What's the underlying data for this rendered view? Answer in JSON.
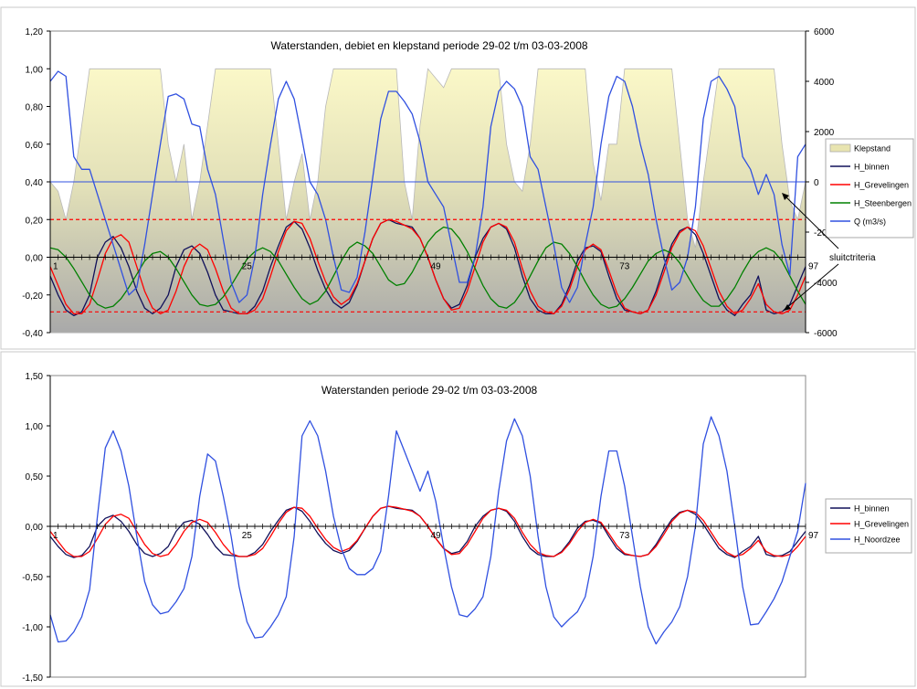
{
  "chart_data": [
    {
      "type": "line",
      "title": "Waterstanden, debiet en klepstand periode 29-02 t/m 03-03-2008",
      "x_range": [
        1,
        97
      ],
      "x_tick_labels": [
        "1",
        "25",
        "49",
        "73",
        "97"
      ],
      "ylim": [
        -0.4,
        1.2
      ],
      "y_tick_labels": [
        "1,20",
        "1,00",
        "0,80",
        "0,60",
        "0,40",
        "0,20",
        "0,00",
        "-0,20",
        "-0,40"
      ],
      "y2lim": [
        -6000,
        6000
      ],
      "y2_tick_labels": [
        "6000",
        "4000",
        "2000",
        "0",
        "-2000",
        "-4000",
        "-6000"
      ],
      "grid": false,
      "legend_position": "right",
      "legend": [
        "Klepstand",
        "H_binnen",
        "H_Grevelingen",
        "H_Steenbergen",
        "Q (m3/s)"
      ],
      "colors": {
        "Klepstand": "#f5f0b0",
        "H_binnen": "#10105a",
        "H_Grevelingen": "#ff0000",
        "H_Steenbergen": "#008000",
        "Q": "#3050e0",
        "criteria": "#ff0000"
      },
      "criteria_lines": [
        0.2,
        -0.29
      ],
      "annotation": "sluitctriteria",
      "series": [
        {
          "name": "Klepstand",
          "axis": "left",
          "kind": "area",
          "values": [
            0.4,
            0.35,
            0.2,
            0.4,
            0.7,
            1.0,
            1.0,
            1.0,
            1.0,
            1.0,
            1.0,
            1.0,
            1.0,
            1.0,
            1.0,
            0.6,
            0.4,
            0.6,
            0.2,
            0.4,
            0.7,
            1.0,
            1.0,
            1.0,
            1.0,
            1.0,
            1.0,
            1.0,
            1.0,
            0.6,
            0.2,
            0.4,
            0.55,
            0.2,
            0.4,
            0.8,
            1.0,
            1.0,
            1.0,
            1.0,
            1.0,
            1.0,
            1.0,
            1.0,
            1.0,
            0.4,
            0.2,
            0.7,
            1.0,
            0.95,
            0.9,
            1.0,
            1.0,
            1.0,
            1.0,
            1.0,
            1.0,
            1.0,
            0.6,
            0.4,
            0.35,
            0.6,
            1.0,
            1.0,
            1.0,
            1.0,
            1.0,
            1.0,
            1.0,
            0.5,
            0.3,
            0.6,
            0.6,
            1.0,
            1.0,
            1.0,
            1.0,
            1.0,
            1.0,
            1.0,
            0.6,
            0.2,
            0.05,
            0.4,
            0.7,
            1.0,
            1.0,
            1.0,
            1.0,
            1.0,
            1.0,
            1.0,
            1.0,
            0.6,
            0.3,
            0.2,
            0.4
          ]
        },
        {
          "name": "H_binnen",
          "axis": "left",
          "values": [
            -0.1,
            -0.2,
            -0.28,
            -0.31,
            -0.29,
            -0.2,
            0.0,
            0.08,
            0.11,
            0.05,
            -0.05,
            -0.18,
            -0.27,
            -0.3,
            -0.27,
            -0.2,
            -0.05,
            0.04,
            0.06,
            0.02,
            -0.08,
            -0.2,
            -0.28,
            -0.29,
            -0.3,
            -0.3,
            -0.26,
            -0.18,
            -0.05,
            0.06,
            0.16,
            0.19,
            0.15,
            0.05,
            -0.07,
            -0.17,
            -0.24,
            -0.27,
            -0.24,
            -0.15,
            -0.02,
            0.1,
            0.18,
            0.2,
            0.18,
            0.17,
            0.16,
            0.1,
            0.0,
            -0.12,
            -0.22,
            -0.27,
            -0.25,
            -0.15,
            0.0,
            0.1,
            0.16,
            0.18,
            0.15,
            0.05,
            -0.1,
            -0.22,
            -0.28,
            -0.3,
            -0.3,
            -0.25,
            -0.15,
            -0.02,
            0.05,
            0.06,
            0.03,
            -0.1,
            -0.22,
            -0.28,
            -0.29,
            -0.3,
            -0.28,
            -0.18,
            -0.05,
            0.07,
            0.14,
            0.16,
            0.12,
            0.02,
            -0.1,
            -0.22,
            -0.28,
            -0.31,
            -0.25,
            -0.2,
            -0.1,
            -0.28,
            -0.3,
            -0.29,
            -0.25,
            -0.15,
            -0.05
          ]
        },
        {
          "name": "H_Grevelingen",
          "axis": "left",
          "values": [
            -0.05,
            -0.15,
            -0.25,
            -0.3,
            -0.3,
            -0.25,
            -0.12,
            0.02,
            0.1,
            0.12,
            0.08,
            -0.05,
            -0.18,
            -0.27,
            -0.3,
            -0.28,
            -0.18,
            -0.05,
            0.04,
            0.07,
            0.04,
            -0.06,
            -0.18,
            -0.27,
            -0.3,
            -0.3,
            -0.28,
            -0.22,
            -0.1,
            0.03,
            0.14,
            0.19,
            0.18,
            0.1,
            -0.02,
            -0.13,
            -0.21,
            -0.25,
            -0.22,
            -0.14,
            -0.02,
            0.1,
            0.18,
            0.2,
            0.19,
            0.17,
            0.15,
            0.1,
            0.0,
            -0.12,
            -0.22,
            -0.28,
            -0.27,
            -0.18,
            -0.05,
            0.08,
            0.16,
            0.18,
            0.16,
            0.08,
            -0.06,
            -0.18,
            -0.26,
            -0.29,
            -0.3,
            -0.26,
            -0.17,
            -0.05,
            0.04,
            0.07,
            0.04,
            -0.07,
            -0.19,
            -0.27,
            -0.29,
            -0.3,
            -0.28,
            -0.2,
            -0.08,
            0.05,
            0.13,
            0.16,
            0.14,
            0.06,
            -0.06,
            -0.18,
            -0.26,
            -0.3,
            -0.28,
            -0.22,
            -0.14,
            -0.25,
            -0.29,
            -0.3,
            -0.28,
            -0.2,
            -0.1
          ]
        },
        {
          "name": "H_Steenbergen",
          "axis": "left",
          "values": [
            0.05,
            0.04,
            0.0,
            -0.06,
            -0.13,
            -0.2,
            -0.25,
            -0.27,
            -0.26,
            -0.22,
            -0.16,
            -0.09,
            -0.02,
            0.02,
            0.03,
            0.0,
            -0.06,
            -0.13,
            -0.2,
            -0.25,
            -0.26,
            -0.25,
            -0.21,
            -0.15,
            -0.08,
            -0.01,
            0.03,
            0.05,
            0.03,
            -0.02,
            -0.09,
            -0.16,
            -0.22,
            -0.25,
            -0.23,
            -0.18,
            -0.1,
            -0.02,
            0.05,
            0.08,
            0.06,
            0.02,
            -0.05,
            -0.12,
            -0.15,
            -0.14,
            -0.08,
            0.0,
            0.08,
            0.13,
            0.16,
            0.15,
            0.1,
            0.03,
            -0.06,
            -0.15,
            -0.22,
            -0.26,
            -0.27,
            -0.24,
            -0.18,
            -0.1,
            -0.02,
            0.05,
            0.08,
            0.07,
            0.02,
            -0.05,
            -0.13,
            -0.2,
            -0.25,
            -0.27,
            -0.26,
            -0.22,
            -0.16,
            -0.09,
            -0.02,
            0.02,
            0.04,
            0.02,
            -0.03,
            -0.1,
            -0.17,
            -0.23,
            -0.26,
            -0.26,
            -0.22,
            -0.16,
            -0.08,
            -0.01,
            0.03,
            0.05,
            0.03,
            -0.02,
            -0.1,
            -0.18,
            -0.25
          ]
        },
        {
          "name": "Q (m3/s)",
          "axis": "right",
          "values": [
            4000,
            4400,
            4200,
            1000,
            500,
            500,
            -500,
            -1500,
            -2500,
            -3500,
            -4500,
            -4200,
            -2500,
            -500,
            1500,
            3400,
            3500,
            3300,
            2300,
            2200,
            500,
            -500,
            -2300,
            -4000,
            -4800,
            -4500,
            -3000,
            -500,
            1500,
            3300,
            4000,
            3300,
            1700,
            0,
            -500,
            -1500,
            -3000,
            -4300,
            -4400,
            -3800,
            -2000,
            200,
            2500,
            3600,
            3600,
            3200,
            2700,
            1600,
            0,
            -500,
            -1000,
            -2500,
            -4000,
            -4000,
            -3000,
            -1000,
            2200,
            3600,
            4000,
            3700,
            3000,
            1000,
            500,
            -1000,
            -2500,
            -4200,
            -4800,
            -4200,
            -2500,
            -1000,
            1500,
            3400,
            4200,
            4000,
            3000,
            1500,
            300,
            -1500,
            -3000,
            -4300,
            -4000,
            -3000,
            -1000,
            2500,
            4000,
            4200,
            3700,
            3000,
            1000,
            500,
            -500,
            300,
            -500,
            -2500,
            -3700,
            1000,
            1500
          ]
        }
      ]
    },
    {
      "type": "line",
      "title": "Waterstanden periode 29-02 t/m 03-03-2008",
      "x_range": [
        1,
        97
      ],
      "x_tick_labels": [
        "1",
        "25",
        "49",
        "73",
        "97"
      ],
      "ylim": [
        -1.5,
        1.5
      ],
      "y_tick_labels": [
        "1,50",
        "1,00",
        "0,50",
        "0,00",
        "-0,50",
        "-1,00",
        "-1,50"
      ],
      "grid": false,
      "legend_position": "right",
      "legend": [
        "H_binnen",
        "H_Grevelingen",
        "H_Noordzee"
      ],
      "colors": {
        "H_binnen": "#10105a",
        "H_Grevelingen": "#ff0000",
        "H_Noordzee": "#3050e0"
      },
      "series": [
        {
          "name": "H_binnen",
          "values": [
            -0.1,
            -0.2,
            -0.28,
            -0.31,
            -0.29,
            -0.2,
            0.0,
            0.08,
            0.11,
            0.05,
            -0.05,
            -0.18,
            -0.27,
            -0.3,
            -0.27,
            -0.2,
            -0.05,
            0.04,
            0.06,
            0.02,
            -0.08,
            -0.2,
            -0.28,
            -0.29,
            -0.3,
            -0.3,
            -0.26,
            -0.18,
            -0.05,
            0.06,
            0.16,
            0.19,
            0.15,
            0.05,
            -0.07,
            -0.17,
            -0.24,
            -0.27,
            -0.24,
            -0.15,
            -0.02,
            0.1,
            0.18,
            0.2,
            0.18,
            0.17,
            0.16,
            0.1,
            0.0,
            -0.12,
            -0.22,
            -0.27,
            -0.25,
            -0.15,
            0.0,
            0.1,
            0.16,
            0.18,
            0.15,
            0.05,
            -0.1,
            -0.22,
            -0.28,
            -0.3,
            -0.3,
            -0.25,
            -0.15,
            -0.02,
            0.05,
            0.06,
            0.03,
            -0.1,
            -0.22,
            -0.28,
            -0.29,
            -0.3,
            -0.28,
            -0.18,
            -0.05,
            0.07,
            0.14,
            0.16,
            0.12,
            0.02,
            -0.1,
            -0.22,
            -0.28,
            -0.31,
            -0.25,
            -0.2,
            -0.1,
            -0.28,
            -0.3,
            -0.29,
            -0.25,
            -0.15,
            -0.05
          ]
        },
        {
          "name": "H_Grevelingen",
          "values": [
            -0.05,
            -0.15,
            -0.25,
            -0.3,
            -0.3,
            -0.25,
            -0.12,
            0.02,
            0.1,
            0.12,
            0.08,
            -0.05,
            -0.18,
            -0.27,
            -0.3,
            -0.28,
            -0.18,
            -0.05,
            0.04,
            0.07,
            0.04,
            -0.06,
            -0.18,
            -0.27,
            -0.3,
            -0.3,
            -0.28,
            -0.22,
            -0.1,
            0.03,
            0.14,
            0.19,
            0.18,
            0.1,
            -0.02,
            -0.13,
            -0.21,
            -0.25,
            -0.22,
            -0.14,
            -0.02,
            0.1,
            0.18,
            0.2,
            0.19,
            0.17,
            0.15,
            0.1,
            0.0,
            -0.12,
            -0.22,
            -0.28,
            -0.27,
            -0.18,
            -0.05,
            0.08,
            0.16,
            0.18,
            0.16,
            0.08,
            -0.06,
            -0.18,
            -0.26,
            -0.29,
            -0.3,
            -0.26,
            -0.17,
            -0.05,
            0.04,
            0.07,
            0.04,
            -0.07,
            -0.19,
            -0.27,
            -0.29,
            -0.3,
            -0.28,
            -0.2,
            -0.08,
            0.05,
            0.13,
            0.16,
            0.14,
            0.06,
            -0.06,
            -0.18,
            -0.26,
            -0.3,
            -0.28,
            -0.22,
            -0.14,
            -0.25,
            -0.29,
            -0.3,
            -0.28,
            -0.2,
            -0.1
          ]
        },
        {
          "name": "H_Noordzee",
          "values": [
            -0.88,
            -1.15,
            -1.14,
            -1.05,
            -0.9,
            -0.63,
            0.1,
            0.78,
            0.95,
            0.75,
            0.4,
            -0.1,
            -0.55,
            -0.78,
            -0.87,
            -0.85,
            -0.75,
            -0.62,
            -0.3,
            0.3,
            0.72,
            0.65,
            0.3,
            -0.1,
            -0.6,
            -0.95,
            -1.11,
            -1.1,
            -1.0,
            -0.88,
            -0.7,
            -0.1,
            0.9,
            1.05,
            0.9,
            0.55,
            0.1,
            -0.22,
            -0.42,
            -0.48,
            -0.48,
            -0.42,
            -0.25,
            0.3,
            0.95,
            0.75,
            0.55,
            0.35,
            0.55,
            0.25,
            -0.2,
            -0.6,
            -0.88,
            -0.9,
            -0.82,
            -0.7,
            -0.3,
            0.35,
            0.85,
            1.07,
            0.9,
            0.5,
            -0.1,
            -0.6,
            -0.9,
            -1.0,
            -0.92,
            -0.85,
            -0.7,
            -0.3,
            0.3,
            0.75,
            0.75,
            0.4,
            -0.1,
            -0.6,
            -1.0,
            -1.17,
            -1.05,
            -0.95,
            -0.8,
            -0.5,
            0.0,
            0.82,
            1.09,
            0.9,
            0.55,
            0.0,
            -0.6,
            -0.98,
            -0.97,
            -0.85,
            -0.72,
            -0.55,
            -0.3,
            -0.05,
            0.43
          ]
        }
      ]
    }
  ]
}
